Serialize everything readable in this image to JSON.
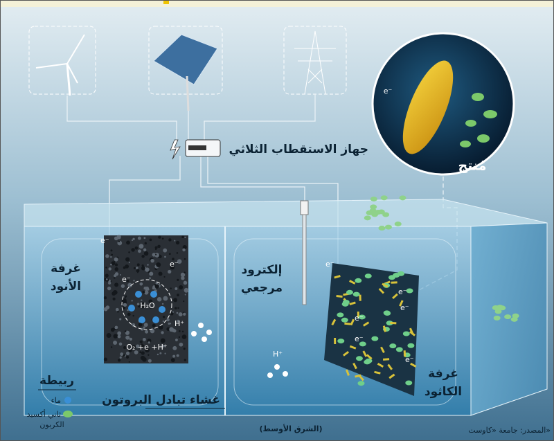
{
  "device_label": "جهاز الاستقطاب الثلاثي",
  "product_label": "مُنتج",
  "anode_chamber": [
    "غرفة",
    "الأنود"
  ],
  "reference_electrode": [
    "إلكترود",
    "مرجعي"
  ],
  "cathode_chamber": [
    "غرفة",
    "الكاثود"
  ],
  "membrane_label": "غشاء تبادل البروتون",
  "legend": {
    "title": "ربيطة",
    "items": [
      {
        "lines": [
          "ماء"
        ]
      },
      {
        "lines": [
          "ثاني أكسيد",
          "الكربون"
        ]
      }
    ]
  },
  "electron_labels": [
    "e⁻",
    "e⁻",
    "e⁻",
    "e⁻",
    "e⁻",
    "e⁻",
    "e⁻",
    "e⁻",
    "e⁻",
    "e⁻"
  ],
  "proton_labels": [
    "H⁺",
    "H⁺"
  ],
  "water_formula": "H₂O",
  "anode_reaction": "O₂ +e +H⁺",
  "credit": "(الشرق الأوسط)",
  "source": "المصدر: جامعة «كاوست»"
}
